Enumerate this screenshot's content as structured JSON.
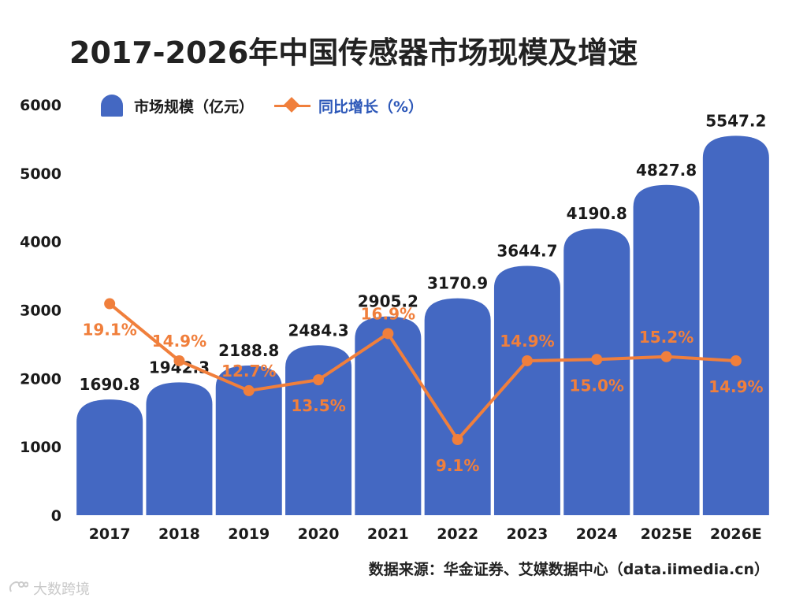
{
  "chart_data": {
    "type": "bar",
    "title": "2017-2026年中国传感器市场现模及增速",
    "categories": [
      "2017",
      "2018",
      "2019",
      "2020",
      "2021",
      "2022",
      "2023",
      "2024",
      "2025E",
      "2026E"
    ],
    "series": [
      {
        "name": "市场规模（亿元）",
        "type": "bar",
        "values": [
          1690.8,
          1942.3,
          2188.8,
          2484.3,
          2905.2,
          3170.9,
          3644.7,
          4190.8,
          4827.8,
          5547.2
        ],
        "labels": [
          "1690.8",
          "1942.3",
          "2188.8",
          "2484.3",
          "2905.2",
          "3170.9",
          "3644.7",
          "4190.8",
          "4827.8",
          "5547.2"
        ]
      },
      {
        "name": "同比增长（%）",
        "type": "line",
        "values": [
          19.1,
          14.9,
          12.7,
          13.5,
          16.9,
          9.1,
          14.9,
          15.0,
          15.2,
          14.9
        ],
        "labels": [
          "19.1%",
          "14.9%",
          "12.7%",
          "13.5%",
          "16.9%",
          "9.1%",
          "14.9%",
          "15.0%",
          "15.2%",
          "14.9%"
        ],
        "label_positions": [
          "below",
          "above",
          "above",
          "below",
          "above",
          "below",
          "above",
          "below",
          "above",
          "below"
        ]
      }
    ],
    "y_ticks": [
      "0",
      "1000",
      "2000",
      "3000",
      "4000",
      "5000",
      "6000"
    ],
    "ylim": [
      0,
      6000
    ],
    "xlabel": "",
    "ylabel": "",
    "legend_position": "top-left",
    "grid": false
  },
  "legend": {
    "bar_label": "市场规模（亿元）",
    "line_label": "同比增长（%）"
  },
  "source": "数据来源：华金证券、艾媒数据中心（data.iimedia.cn）",
  "watermark": "大数跨境",
  "colors": {
    "bar": "#4468c2",
    "line": "#f07f3c",
    "growth_label": "#f07f3c",
    "legend_line_text": "#2c57b8"
  }
}
